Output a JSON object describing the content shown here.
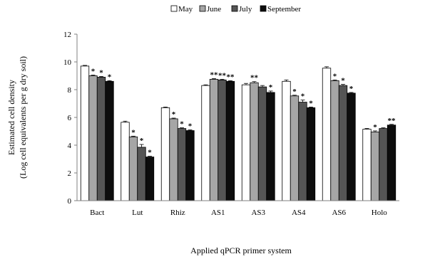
{
  "chart_data": {
    "type": "bar",
    "title": "",
    "xlabel": "Applied  qPCR primer system",
    "ylabel": [
      "Estimated  cell  density",
      "(Log cell  equivalents  per g  dry soil)"
    ],
    "categories": [
      "Bact",
      "Lut",
      "Rhiz",
      "AS1",
      "AS3",
      "AS4",
      "AS6",
      "Holo"
    ],
    "ylim": [
      0,
      12
    ],
    "yticks": [
      "0",
      "2",
      "4",
      "6",
      "8",
      "10",
      "12"
    ],
    "grid": false,
    "legend_position": "top",
    "series": [
      {
        "name": "May",
        "color": "#ffffff",
        "values": [
          9.7,
          5.65,
          6.7,
          8.3,
          8.35,
          8.6,
          9.55,
          5.15
        ],
        "errors": [
          0.05,
          0.08,
          0.05,
          0.05,
          0.1,
          0.1,
          0.1,
          0.05
        ],
        "markers": [
          "",
          "",
          "",
          "",
          "",
          "",
          "",
          ""
        ]
      },
      {
        "name": "June",
        "color": "#a6a6a6",
        "values": [
          9.0,
          4.6,
          5.9,
          8.75,
          8.5,
          7.55,
          8.65,
          4.95
        ],
        "errors": [
          0.05,
          0.05,
          0.05,
          0.05,
          0.08,
          0.05,
          0.05,
          0.08
        ],
        "markers": [
          "*",
          "*",
          "*",
          "**",
          "**",
          "*",
          "*",
          "*"
        ]
      },
      {
        "name": "July",
        "color": "#555555",
        "values": [
          8.9,
          3.85,
          5.2,
          8.7,
          8.2,
          7.1,
          8.3,
          5.2
        ],
        "errors": [
          0.05,
          0.2,
          0.05,
          0.05,
          0.1,
          0.15,
          0.08,
          0.05
        ],
        "markers": [
          "*",
          "*",
          "*",
          "**",
          "",
          "*",
          "*",
          ""
        ]
      },
      {
        "name": "September",
        "color": "#0d0d0d",
        "values": [
          8.6,
          3.15,
          5.05,
          8.6,
          7.8,
          6.7,
          7.75,
          5.45
        ],
        "errors": [
          0.05,
          0.05,
          0.05,
          0.05,
          0.1,
          0.05,
          0.05,
          0.05
        ],
        "markers": [
          "*",
          "*",
          "*",
          "**",
          "*",
          "*",
          "*",
          "**"
        ]
      }
    ]
  }
}
